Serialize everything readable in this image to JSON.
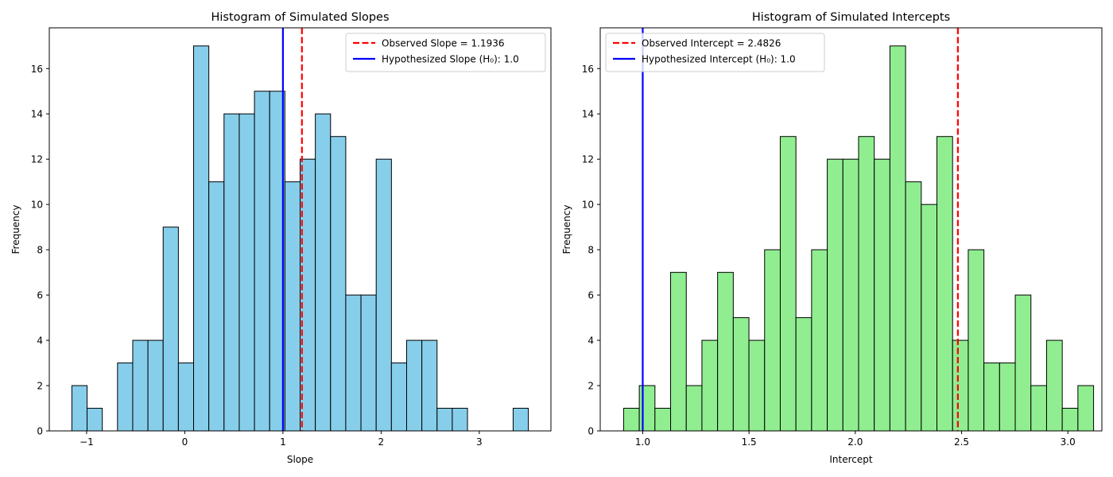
{
  "chart_data": [
    {
      "type": "bar",
      "title": "Histogram of Simulated Slopes",
      "xlabel": "Slope",
      "ylabel": "Frequency",
      "bar_color": "#87ceeb",
      "edge_color": "#000000",
      "bin_start": -1.15,
      "bin_width": 0.155,
      "counts": [
        2,
        1,
        0,
        3,
        4,
        4,
        9,
        3,
        17,
        11,
        14,
        14,
        15,
        15,
        11,
        12,
        14,
        13,
        6,
        6,
        12,
        3,
        4,
        4,
        1,
        1,
        0,
        0,
        0,
        1
      ],
      "xlim": [
        -1.38,
        3.73
      ],
      "ylim": [
        0,
        17.8
      ],
      "xticks": [
        -1,
        0,
        1,
        2,
        3
      ],
      "xtick_labels": [
        "−1",
        "0",
        "1",
        "2",
        "3"
      ],
      "yticks": [
        0,
        2,
        4,
        6,
        8,
        10,
        12,
        14,
        16
      ],
      "vlines": [
        {
          "x": 1.1936,
          "color": "#ff0000",
          "style": "dashed",
          "label": "Observed Slope = 1.1936"
        },
        {
          "x": 1.0,
          "color": "#0000ff",
          "style": "solid",
          "label": "Hypothesized Slope (H₀): 1.0"
        }
      ],
      "legend_position": "top-right"
    },
    {
      "type": "bar",
      "title": "Histogram of Simulated Intercepts",
      "xlabel": "Intercept",
      "ylabel": "Frequency",
      "bar_color": "#90ee90",
      "edge_color": "#000000",
      "bin_start": 0.91,
      "bin_width": 0.0737,
      "counts": [
        1,
        2,
        1,
        7,
        2,
        4,
        7,
        5,
        4,
        8,
        13,
        5,
        8,
        12,
        12,
        13,
        12,
        17,
        11,
        10,
        13,
        4,
        8,
        3,
        3,
        6,
        2,
        4,
        1,
        2
      ],
      "xlim": [
        0.8,
        3.16
      ],
      "ylim": [
        0,
        17.8
      ],
      "xticks": [
        1.0,
        1.5,
        2.0,
        2.5,
        3.0
      ],
      "xtick_labels": [
        "1.0",
        "1.5",
        "2.0",
        "2.5",
        "3.0"
      ],
      "yticks": [
        0,
        2,
        4,
        6,
        8,
        10,
        12,
        14,
        16
      ],
      "vlines": [
        {
          "x": 2.4826,
          "color": "#ff0000",
          "style": "dashed",
          "label": "Observed Intercept = 2.4826"
        },
        {
          "x": 1.0,
          "color": "#0000ff",
          "style": "solid",
          "label": "Hypothesized Intercept (H₀): 1.0"
        }
      ],
      "legend_position": "top-left"
    }
  ]
}
